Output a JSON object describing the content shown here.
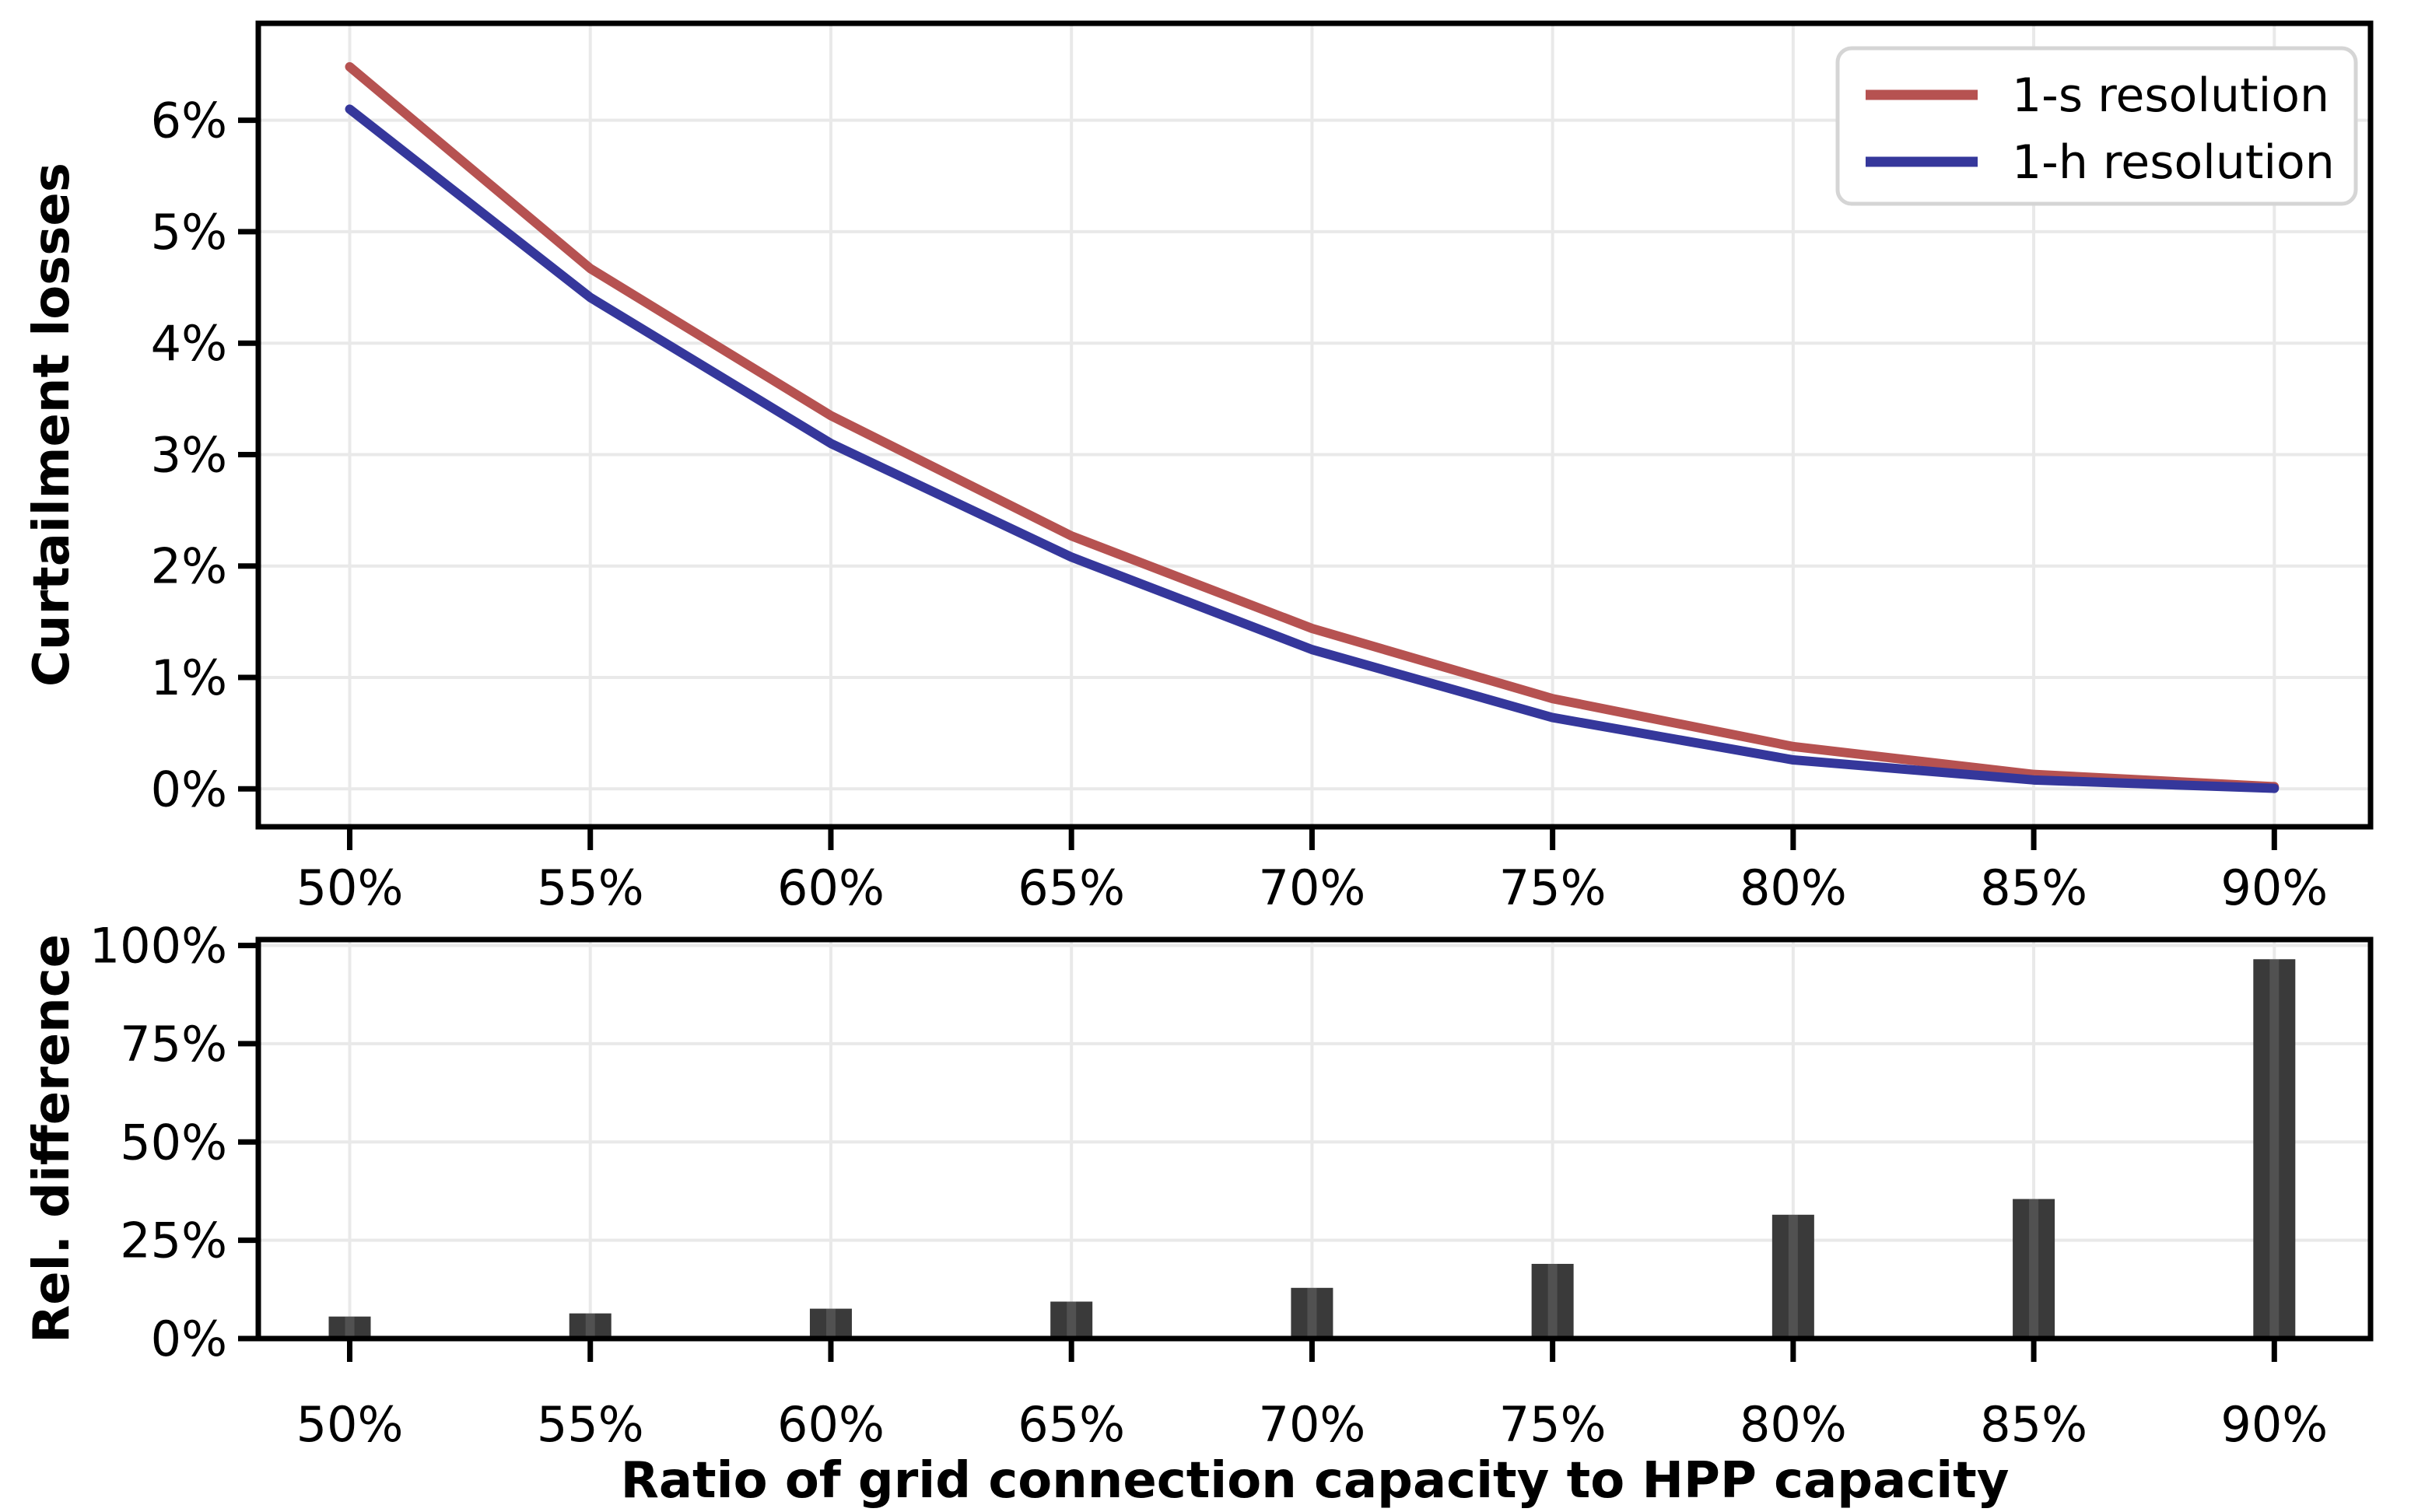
{
  "figure": {
    "background": "#ffffff",
    "axis_color": "#000000",
    "grid_color": "#e9e9e9"
  },
  "chart_data": [
    {
      "type": "line",
      "ylabel": "Curtailment losses",
      "x": [
        50,
        55,
        60,
        65,
        70,
        75,
        80,
        85,
        90
      ],
      "x_tick_labels": [
        "50%",
        "55%",
        "60%",
        "65%",
        "70%",
        "75%",
        "80%",
        "85%",
        "90%"
      ],
      "y_tick_values": [
        0,
        1,
        2,
        3,
        4,
        5,
        6
      ],
      "y_tick_labels": [
        "0%",
        "1%",
        "2%",
        "3%",
        "4%",
        "5%",
        "6%"
      ],
      "xlim": [
        48.1,
        92.0
      ],
      "ylim": [
        -0.34,
        6.87
      ],
      "grid": true,
      "legend_position": "upper right",
      "series": [
        {
          "name": "1-s resolution",
          "color": "#b65251",
          "values": [
            6.48,
            4.67,
            3.35,
            2.27,
            1.44,
            0.81,
            0.38,
            0.13,
            0.02
          ]
        },
        {
          "name": "1-h resolution",
          "color": "#35379b",
          "values": [
            6.1,
            4.41,
            3.1,
            2.08,
            1.25,
            0.64,
            0.26,
            0.08,
            0.005
          ]
        }
      ]
    },
    {
      "type": "bar",
      "ylabel": "Rel. difference",
      "xlabel": "Ratio of grid connection capacity to HPP capacity",
      "categories": [
        "50%",
        "55%",
        "60%",
        "65%",
        "70%",
        "75%",
        "80%",
        "85%",
        "90%"
      ],
      "x": [
        50,
        55,
        60,
        65,
        70,
        75,
        80,
        85,
        90
      ],
      "values": [
        5.6,
        6.4,
        7.6,
        9.4,
        12.9,
        19.0,
        31.5,
        35.5,
        96.5
      ],
      "bar_color": "#3a3a3a",
      "y_tick_values": [
        0,
        25,
        50,
        75,
        100
      ],
      "y_tick_labels": [
        "0%",
        "25%",
        "50%",
        "75%",
        "100%"
      ],
      "xlim": [
        48.1,
        92.0
      ],
      "ylim": [
        0,
        101.5
      ],
      "grid": true
    }
  ]
}
